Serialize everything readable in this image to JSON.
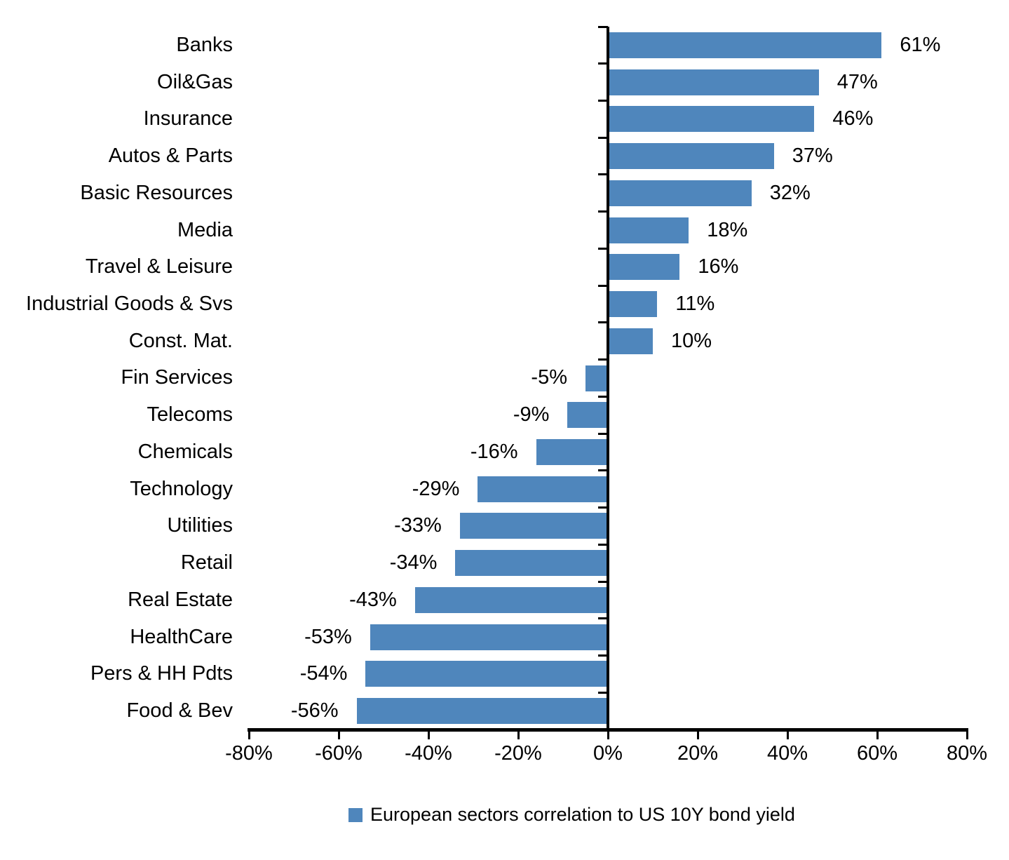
{
  "chart_data": {
    "type": "bar",
    "orientation": "horizontal",
    "title": "",
    "xlabel": "",
    "ylabel": "",
    "categories": [
      "Banks",
      "Oil&Gas",
      "Insurance",
      "Autos & Parts",
      "Basic Resources",
      "Media",
      "Travel & Leisure",
      "Industrial Goods & Svs",
      "Const. Mat.",
      "Fin Services",
      "Telecoms",
      "Chemicals",
      "Technology",
      "Utilities",
      "Retail",
      "Real Estate",
      "HealthCare",
      "Pers & HH Pdts",
      "Food & Bev"
    ],
    "values": [
      61,
      47,
      46,
      37,
      32,
      18,
      16,
      11,
      10,
      -5,
      -9,
      -16,
      -29,
      -33,
      -34,
      -43,
      -53,
      -54,
      -56
    ],
    "value_labels": [
      "61%",
      "47%",
      "46%",
      "37%",
      "32%",
      "18%",
      "16%",
      "11%",
      "10%",
      "-5%",
      "-9%",
      "-16%",
      "-29%",
      "-33%",
      "-34%",
      "-43%",
      "-53%",
      "-54%",
      "-56%"
    ],
    "xlim": [
      -80,
      80
    ],
    "x_ticks": [
      {
        "value": -80,
        "label": "-80%"
      },
      {
        "value": -60,
        "label": "-60%"
      },
      {
        "value": -40,
        "label": "-40%"
      },
      {
        "value": -20,
        "label": "-20%"
      },
      {
        "value": 0,
        "label": "0%"
      },
      {
        "value": 20,
        "label": "20%"
      },
      {
        "value": 40,
        "label": "40%"
      },
      {
        "value": 60,
        "label": "60%"
      },
      {
        "value": 80,
        "label": "80%"
      }
    ],
    "grid": false,
    "legend_position": "bottom",
    "legend": "European sectors correlation to US 10Y bond yield",
    "bar_color": "#4F86BC",
    "axis_color": "#000000",
    "background_color": "#FFFFFF"
  }
}
